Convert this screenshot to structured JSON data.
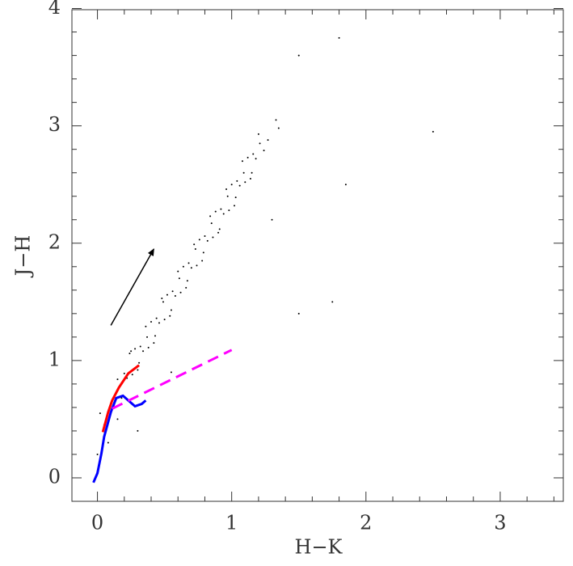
{
  "chart_data": {
    "type": "scatter",
    "xlabel": "H−K",
    "ylabel": "J−H",
    "xlim": [
      -0.19,
      3.47
    ],
    "ylim": [
      -0.2,
      3.99
    ],
    "xticks": [
      0,
      1,
      2,
      3
    ],
    "yticks": [
      0,
      1,
      2,
      3,
      4
    ],
    "xminorticks": [
      0.2,
      0.4,
      0.6,
      0.8,
      1.2,
      1.4,
      1.6,
      1.8,
      2.2,
      2.4,
      2.6,
      2.8,
      3.2,
      3.4
    ],
    "yminorticks": [
      0.2,
      0.4,
      0.6,
      0.8,
      1.2,
      1.4,
      1.6,
      1.8,
      2.2,
      2.4,
      2.6,
      2.8,
      3.2,
      3.4,
      3.6,
      3.8
    ],
    "point_color": "#000000",
    "x": [
      0.15,
      0.18,
      0.2,
      0.22,
      0.24,
      0.26,
      0.28,
      0.3,
      0.32,
      0.34,
      0.36,
      0.38,
      0.4,
      0.42,
      0.44,
      0.46,
      0.48,
      0.5,
      0.52,
      0.54,
      0.56,
      0.58,
      0.6,
      0.62,
      0.64,
      0.66,
      0.68,
      0.7,
      0.72,
      0.74,
      0.76,
      0.78,
      0.8,
      0.82,
      0.84,
      0.86,
      0.88,
      0.9,
      0.92,
      0.94,
      0.96,
      0.98,
      1.0,
      1.02,
      1.04,
      1.06,
      1.08,
      1.1,
      1.12,
      1.14,
      1.16,
      1.18,
      1.2,
      1.24,
      0.12,
      0.19,
      0.25,
      0.31,
      0.37,
      0.43,
      0.49,
      0.55,
      0.61,
      0.67,
      0.73,
      0.79,
      0.85,
      0.91,
      0.97,
      1.03,
      1.09,
      1.15,
      1.21,
      1.27,
      1.33,
      1.35,
      0.05,
      0.0,
      0.08,
      0.3,
      0.55,
      1.5,
      1.75,
      1.8,
      1.5,
      2.5,
      1.85,
      1.3,
      0.02,
      0.15
    ],
    "y": [
      0.84,
      0.68,
      0.89,
      0.85,
      1.06,
      0.88,
      1.1,
      0.92,
      1.12,
      1.08,
      1.29,
      1.11,
      1.33,
      1.15,
      1.36,
      1.32,
      1.53,
      1.35,
      1.56,
      1.38,
      1.59,
      1.55,
      1.76,
      1.58,
      1.8,
      1.62,
      1.83,
      1.79,
      1.99,
      1.81,
      2.03,
      1.85,
      2.06,
      2.02,
      2.23,
      2.05,
      2.27,
      2.09,
      2.29,
      2.25,
      2.46,
      2.28,
      2.5,
      2.32,
      2.53,
      2.49,
      2.7,
      2.52,
      2.73,
      2.55,
      2.76,
      2.72,
      2.93,
      2.79,
      0.68,
      0.7,
      1.08,
      0.98,
      1.2,
      1.21,
      1.5,
      1.43,
      1.7,
      1.68,
      1.95,
      1.92,
      2.17,
      2.12,
      2.4,
      2.39,
      2.6,
      2.6,
      2.85,
      2.88,
      3.05,
      2.98,
      0.45,
      0.2,
      0.3,
      0.4,
      0.9,
      1.4,
      1.5,
      3.75,
      3.6,
      2.95,
      2.5,
      2.2,
      0.55,
      0.5
    ],
    "lines": [
      {
        "color": "#0000ff",
        "dashed": false,
        "x": [
          -0.03,
          0.0,
          0.03,
          0.05,
          0.1,
          0.14,
          0.19,
          0.23,
          0.28,
          0.33,
          0.36
        ],
        "y": [
          -0.04,
          0.04,
          0.21,
          0.35,
          0.56,
          0.68,
          0.7,
          0.66,
          0.61,
          0.63,
          0.66
        ]
      },
      {
        "color": "#ff0000",
        "dashed": false,
        "x": [
          0.04,
          0.08,
          0.11,
          0.16,
          0.23,
          0.31
        ],
        "y": [
          0.39,
          0.56,
          0.66,
          0.77,
          0.89,
          0.96
        ]
      },
      {
        "color": "#ff00ff",
        "dashed": true,
        "x": [
          0.11,
          1.0
        ],
        "y": [
          0.59,
          1.09
        ]
      }
    ],
    "arrow": {
      "color": "#000000",
      "x": [
        0.1,
        0.42
      ],
      "y": [
        1.3,
        1.95
      ]
    }
  }
}
